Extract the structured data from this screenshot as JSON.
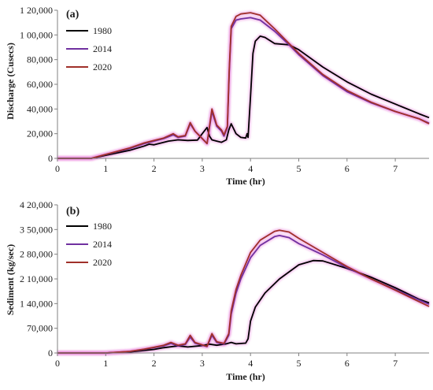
{
  "colors": {
    "1980": "#000000",
    "2014": "#7030a0",
    "2020": "#a0302a"
  },
  "chart_data": [
    {
      "type": "line",
      "panel_label": "(a)",
      "xlabel": "Time (hr)",
      "ylabel": "Discharge (Cusecs)",
      "xlim": [
        0,
        7.7
      ],
      "ylim": [
        0,
        120000
      ],
      "x_ticks": [
        0,
        1,
        2,
        3,
        4,
        5,
        6,
        7
      ],
      "x_tick_labels": [
        "0",
        "1",
        "2",
        "3",
        "4",
        "5",
        "6",
        "7"
      ],
      "y_ticks": [
        0,
        20000,
        40000,
        60000,
        80000,
        100000,
        120000
      ],
      "y_tick_labels": [
        "0",
        "20,000",
        "40,000",
        "60,000",
        "80,000",
        "1 00,000",
        "1 20,000"
      ],
      "grid": false,
      "legend_position": "top-left",
      "series": [
        {
          "name": "1980",
          "color": "#000000",
          "x": [
            0,
            0.7,
            1,
            1.5,
            1.8,
            1.9,
            2,
            2.3,
            2.5,
            2.7,
            2.9,
            3.0,
            3.1,
            3.15,
            3.2,
            3.3,
            3.4,
            3.5,
            3.55,
            3.6,
            3.7,
            3.8,
            3.9,
            3.93,
            3.95,
            4.0,
            4.05,
            4.1,
            4.2,
            4.3,
            4.5,
            4.8,
            5,
            5.5,
            6,
            6.5,
            7,
            7.5,
            7.7
          ],
          "y": [
            0,
            0,
            2500,
            6500,
            10000,
            11500,
            11000,
            14000,
            15000,
            14500,
            14800,
            20000,
            25000,
            18000,
            15000,
            14000,
            13000,
            15000,
            23000,
            28000,
            20000,
            17000,
            16500,
            20000,
            17000,
            50000,
            85000,
            95000,
            99000,
            98000,
            93000,
            92000,
            88000,
            74000,
            62000,
            52000,
            44000,
            36000,
            33000
          ]
        },
        {
          "name": "2014",
          "color": "#7030a0",
          "x": [
            0,
            0.7,
            1,
            1.5,
            1.8,
            2,
            2.2,
            2.4,
            2.5,
            2.65,
            2.75,
            2.85,
            3.0,
            3.1,
            3.2,
            3.3,
            3.4,
            3.45,
            3.52,
            3.56,
            3.6,
            3.7,
            3.8,
            4.0,
            4.2,
            4.5,
            4.8,
            5,
            5.5,
            6,
            6.5,
            7,
            7.5,
            7.7
          ],
          "y": [
            0,
            0,
            3000,
            8000,
            12000,
            14000,
            16000,
            19000,
            17000,
            18000,
            28000,
            22000,
            16000,
            12000,
            38000,
            26000,
            22000,
            18000,
            25000,
            70000,
            105000,
            112000,
            113000,
            114000,
            112000,
            103000,
            92000,
            84000,
            67000,
            54000,
            45000,
            38000,
            32000,
            28500
          ]
        },
        {
          "name": "2020",
          "color": "#a0302a",
          "x": [
            0,
            0.7,
            1,
            1.5,
            1.8,
            2,
            2.2,
            2.4,
            2.5,
            2.65,
            2.75,
            2.85,
            3.0,
            3.1,
            3.2,
            3.3,
            3.4,
            3.45,
            3.52,
            3.56,
            3.6,
            3.7,
            3.8,
            4.0,
            4.2,
            4.5,
            4.8,
            5,
            5.5,
            6,
            6.5,
            7,
            7.5,
            7.7
          ],
          "y": [
            0,
            0,
            3200,
            8500,
            12500,
            14500,
            16500,
            20000,
            17500,
            18500,
            29000,
            22000,
            16000,
            12000,
            40000,
            27000,
            23000,
            19000,
            26000,
            72000,
            107000,
            115000,
            117000,
            118000,
            116000,
            105000,
            93000,
            85000,
            68000,
            55000,
            45500,
            38000,
            32000,
            28000
          ]
        }
      ]
    },
    {
      "type": "line",
      "panel_label": "(b)",
      "xlabel": "Time (hr)",
      "ylabel": "Sediment (kg/sec)",
      "xlim": [
        0,
        7.7
      ],
      "ylim": [
        0,
        420000
      ],
      "x_ticks": [
        0,
        1,
        2,
        3,
        4,
        5,
        6,
        7
      ],
      "x_tick_labels": [
        "0",
        "1",
        "2",
        "3",
        "4",
        "5",
        "6",
        "7"
      ],
      "y_ticks": [
        0,
        70000,
        140000,
        210000,
        280000,
        350000,
        420000
      ],
      "y_tick_labels": [
        "0",
        "70,000",
        "1 40,000",
        "2 10,000",
        "2 80,000",
        "3 50,000",
        "4 20,000"
      ],
      "grid": false,
      "legend_position": "top-left",
      "series": [
        {
          "name": "1980",
          "color": "#000000",
          "x": [
            0,
            1,
            1.5,
            2,
            2.2,
            2.5,
            2.7,
            3.0,
            3.15,
            3.3,
            3.5,
            3.6,
            3.7,
            3.9,
            3.95,
            4.0,
            4.1,
            4.3,
            4.6,
            5,
            5.3,
            5.5,
            6,
            6.5,
            7,
            7.5,
            7.7
          ],
          "y": [
            0,
            0,
            3000,
            10000,
            15000,
            20000,
            17000,
            21000,
            25000,
            22000,
            26000,
            30000,
            26000,
            28000,
            40000,
            90000,
            130000,
            170000,
            210000,
            250000,
            262000,
            261000,
            240000,
            215000,
            185000,
            152000,
            142000
          ]
        },
        {
          "name": "2014",
          "color": "#7030a0",
          "x": [
            0,
            1,
            1.5,
            1.8,
            2,
            2.2,
            2.35,
            2.5,
            2.65,
            2.75,
            2.85,
            3.0,
            3.1,
            3.2,
            3.3,
            3.45,
            3.55,
            3.6,
            3.7,
            3.8,
            4.0,
            4.2,
            4.5,
            4.6,
            4.8,
            5,
            5.5,
            6,
            6.5,
            7,
            7.5,
            7.7
          ],
          "y": [
            0,
            0,
            4000,
            10000,
            15000,
            20000,
            27000,
            20000,
            24000,
            45000,
            28000,
            22000,
            18000,
            50000,
            30000,
            25000,
            50000,
            110000,
            170000,
            210000,
            270000,
            305000,
            330000,
            333000,
            327000,
            310000,
            278000,
            242000,
            210000,
            180000,
            150000,
            138000
          ]
        },
        {
          "name": "2020",
          "color": "#a0302a",
          "x": [
            0,
            1,
            1.5,
            1.8,
            2,
            2.2,
            2.35,
            2.5,
            2.65,
            2.75,
            2.85,
            3.0,
            3.1,
            3.2,
            3.3,
            3.45,
            3.55,
            3.6,
            3.7,
            3.8,
            4.0,
            4.2,
            4.5,
            4.6,
            4.8,
            5,
            5.5,
            6,
            6.5,
            7,
            7.5,
            7.7
          ],
          "y": [
            0,
            0,
            4500,
            11000,
            16000,
            22000,
            30000,
            22000,
            26000,
            50000,
            30000,
            23000,
            19000,
            55000,
            32000,
            27000,
            55000,
            120000,
            180000,
            220000,
            285000,
            320000,
            345000,
            348000,
            343000,
            325000,
            285000,
            245000,
            210000,
            178000,
            145000,
            132000
          ]
        }
      ]
    }
  ]
}
